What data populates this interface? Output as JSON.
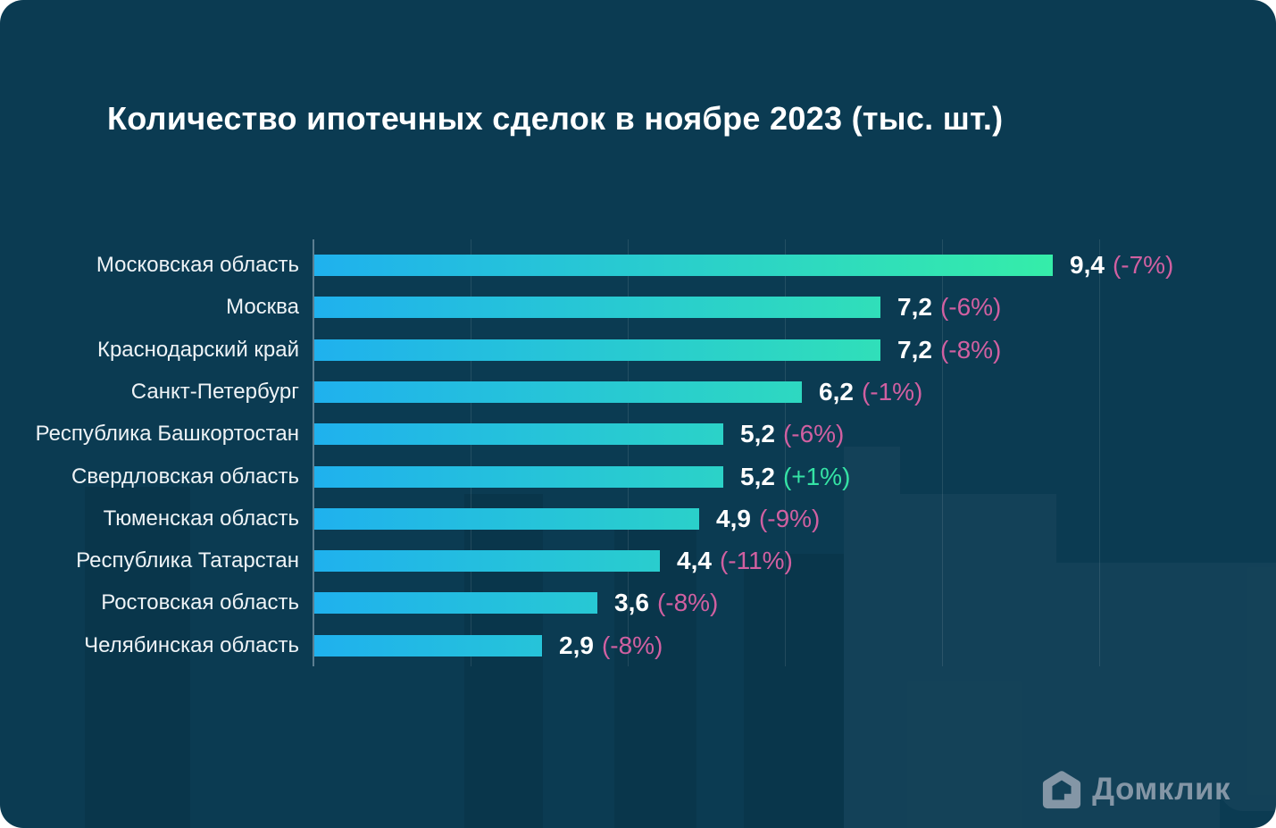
{
  "card": {
    "background": "#0b3b52"
  },
  "title": "Количество ипотечных сделок в ноябре 2023 (тыс. шт.)",
  "chart_data": {
    "type": "bar",
    "orientation": "horizontal",
    "title": "Количество ипотечных сделок в ноябре 2023 (тыс. шт.)",
    "unit": "тыс. шт.",
    "categories": [
      "Московская область",
      "Москва",
      "Краснодарский край",
      "Санкт-Петербург",
      "Республика Башкортостан",
      "Свердловская область",
      "Тюменская область",
      "Республика Татарстан",
      "Ростовская область",
      "Челябинская область"
    ],
    "values": [
      9.4,
      7.2,
      7.2,
      6.2,
      5.2,
      5.2,
      4.9,
      4.4,
      3.6,
      2.9
    ],
    "value_labels": [
      "9,4",
      "7,2",
      "7,2",
      "6,2",
      "5,2",
      "5,2",
      "4,9",
      "4,4",
      "3,6",
      "2,9"
    ],
    "change_labels": [
      "(-7%)",
      "(-6%)",
      "(-8%)",
      "(-1%)",
      "(-6%)",
      "(+1%)",
      "(-9%)",
      "(-11%)",
      "(-8%)",
      "(-8%)"
    ],
    "change_positive": [
      false,
      false,
      false,
      false,
      false,
      true,
      false,
      false,
      false,
      false
    ],
    "xlim": [
      0,
      12.2
    ],
    "gridlines": [
      2,
      4,
      6,
      8,
      10
    ],
    "grid_on": true,
    "legend": "none",
    "bar_gradient_start": "#1fb1ee",
    "bar_gradient_end": "#35eda9",
    "negative_color": "#d160a1",
    "positive_color": "#35e3a5",
    "label_color": "#eef3f6",
    "value_color": "#ffffff"
  },
  "logo": {
    "text": "Домклик",
    "icon": "house-icon",
    "color": "#8496a6"
  }
}
